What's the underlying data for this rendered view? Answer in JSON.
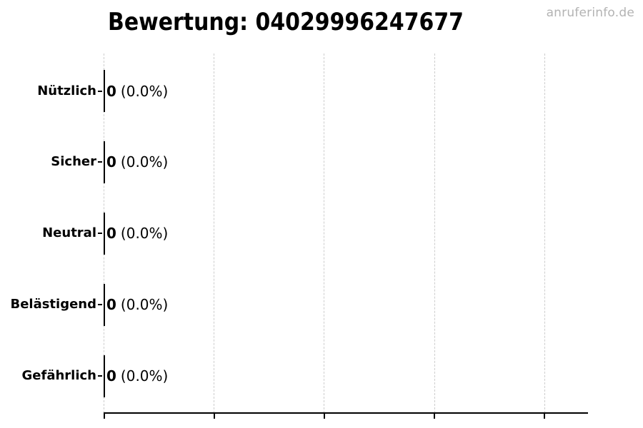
{
  "watermark": "anruferinfo.de",
  "chart_data": {
    "type": "bar",
    "orientation": "horizontal",
    "title": "Bewertung: 04029996247677",
    "categories": [
      "Nützlich",
      "Sicher",
      "Neutral",
      "Belästigend",
      "Gefährlich"
    ],
    "values": [
      0,
      0,
      0,
      0,
      0
    ],
    "rows": [
      {
        "label": "Nützlich",
        "count": "0",
        "percent": "(0.0%)"
      },
      {
        "label": "Sicher",
        "count": "0",
        "percent": "(0.0%)"
      },
      {
        "label": "Neutral",
        "count": "0",
        "percent": "(0.0%)"
      },
      {
        "label": "Belästigend",
        "count": "0",
        "percent": "(0.0%)"
      },
      {
        "label": "Gefährlich",
        "count": "0",
        "percent": "(0.0%)"
      }
    ],
    "xlabel": "",
    "ylabel": "",
    "x_tick_count": 5,
    "x_tick_labels": [
      "",
      "",
      "",
      "",
      ""
    ],
    "grid": "vertical-dashed",
    "legend": "none",
    "colors": {
      "text": "#000000",
      "axis": "#000000",
      "gridline": "#cdcdcd",
      "watermark": "#b3b3b3",
      "background": "#ffffff"
    }
  }
}
